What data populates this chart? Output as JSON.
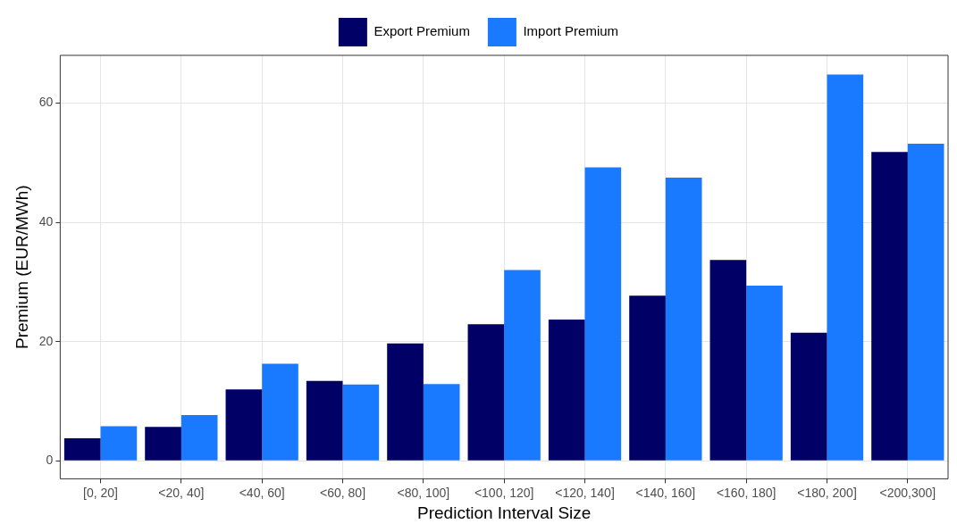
{
  "chart_data": {
    "type": "bar",
    "xlabel": "Prediction Interval Size",
    "ylabel": "Premium (EUR/MWh)",
    "categories": [
      "[0, 20]",
      "<20, 40]",
      "<40, 60]",
      "<60, 80]",
      "<80, 100]",
      "<100, 120]",
      "<120, 140]",
      "<140, 160]",
      "<160, 180]",
      "<180, 200]",
      "<200,300]"
    ],
    "series": [
      {
        "name": "Export Premium",
        "color": "#000066",
        "values": [
          3.8,
          5.7,
          12,
          13.4,
          19.7,
          22.9,
          23.7,
          27.7,
          33.7,
          21.5,
          51.8
        ]
      },
      {
        "name": "Import Premium",
        "color": "#1a7aff",
        "values": [
          5.8,
          7.7,
          16.3,
          12.8,
          12.9,
          32,
          49.2,
          47.5,
          29.4,
          64.8,
          53.2
        ]
      }
    ],
    "ylim": [
      -3,
      68
    ],
    "yticks": [
      0,
      20,
      40,
      60
    ],
    "grid": true,
    "legend": "top"
  }
}
